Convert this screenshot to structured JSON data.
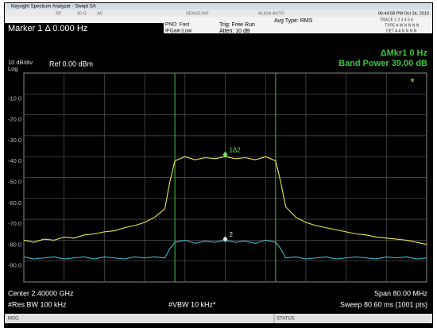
{
  "window": {
    "title": "Keysight Spectrum Analyzer - Swept SA"
  },
  "status_row": {
    "rf": "RF",
    "impedance": "50 Ω",
    "coupling": "AC",
    "sense": "SENSE:INT",
    "align": "ALIGN AUTO",
    "datetime": "06:44:58 PM Oct 24, 2019"
  },
  "settings_row": {
    "marker": "Marker 1 Δ 0.000 Hz",
    "pno": "PNO: Fast",
    "ifgain": "IFGain:Low",
    "trig": "Trig: Free Run",
    "atten": "Atten: 10 dB",
    "avg": "Avg Type: RMS",
    "trace": "TRACE 1 2 3 4 5 6",
    "type": "TYPE A W N N N N",
    "det": "DET A A N N N N"
  },
  "footer": {
    "center": "Center 2.40000 GHz",
    "span": "Span 80.00 MHz",
    "rbw": "#Res BW 100 kHz",
    "vbw": "#VBW 10 kHz*",
    "sweep": "Sweep 80.60 ms (1001 pts)",
    "msg": "MSG",
    "status": "STATUS"
  },
  "chart_data": {
    "type": "line",
    "scale_label": "10 dB/div",
    "log_label": "Log",
    "ref_label": "Ref 0.00 dBm",
    "delta_marker": "ΔMkr1 0 Hz",
    "band_power": "Band Power 39.00 dB",
    "trace_indicator": "*",
    "xlim": [
      2360,
      2440
    ],
    "ylim": [
      -100,
      0
    ],
    "x_grid": [
      2368,
      2376,
      2384,
      2392,
      2400,
      2408,
      2416,
      2424,
      2432
    ],
    "yticks": [
      {
        "value": -10,
        "label": "-10.0"
      },
      {
        "value": -20,
        "label": "-20.0"
      },
      {
        "value": -30,
        "label": "-30.0"
      },
      {
        "value": -40,
        "label": "-40.0"
      },
      {
        "value": -50,
        "label": "-50.0"
      },
      {
        "value": -60,
        "label": "-60.0"
      },
      {
        "value": -70,
        "label": "-70.0"
      },
      {
        "value": -80,
        "label": "-80.0"
      },
      {
        "value": -90,
        "label": "-90.0"
      }
    ],
    "band_edges": [
      2390,
      2410
    ],
    "band_edge_color": "#3ec43e",
    "x": [
      2360,
      2362,
      2364,
      2366,
      2368,
      2370,
      2372,
      2374,
      2376,
      2378,
      2380,
      2382,
      2384,
      2386,
      2388,
      2389,
      2390,
      2392,
      2394,
      2396,
      2398,
      2400,
      2402,
      2404,
      2406,
      2408,
      2410,
      2411,
      2412,
      2414,
      2416,
      2418,
      2420,
      2422,
      2424,
      2426,
      2428,
      2430,
      2432,
      2434,
      2436,
      2438,
      2440
    ],
    "series": [
      {
        "color": "#e8e84a",
        "values": [
          -80,
          -81,
          -79.5,
          -80,
          -78.5,
          -79,
          -77.5,
          -77,
          -76,
          -75.5,
          -74,
          -73,
          -71.5,
          -69,
          -65,
          -52,
          -42,
          -40,
          -41.5,
          -40.5,
          -41,
          -40,
          -41,
          -40.5,
          -41.5,
          -40,
          -42,
          -52,
          -64,
          -69,
          -71.5,
          -73,
          -74,
          -75,
          -76,
          -77,
          -77.5,
          -78.5,
          -79,
          -79.5,
          -80,
          -81,
          -82
        ]
      },
      {
        "color": "#3fb8c8",
        "values": [
          -88,
          -89,
          -88.5,
          -88,
          -89,
          -88.5,
          -88,
          -89,
          -88,
          -88.5,
          -89,
          -88,
          -88.5,
          -88,
          -88.5,
          -84,
          -81,
          -80,
          -81.5,
          -80.5,
          -81,
          -80,
          -81,
          -80.5,
          -81.5,
          -80,
          -81,
          -84,
          -88.5,
          -88,
          -89,
          -88.5,
          -88,
          -89,
          -88.5,
          -88,
          -88.5,
          -89,
          -88,
          -88.5,
          -88,
          -89,
          -88.5
        ]
      }
    ],
    "markers": [
      {
        "label": "1Δ2",
        "x": 2400,
        "y": -39,
        "color": "#6fe06f"
      },
      {
        "label": "2",
        "x": 2400,
        "y": -79.5,
        "color": "#cfe8e8"
      }
    ]
  }
}
